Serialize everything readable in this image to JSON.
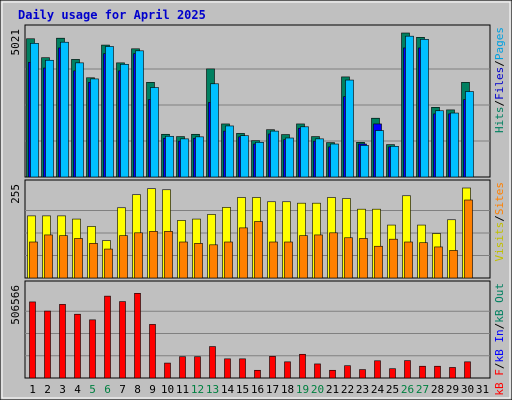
{
  "chart_data": {
    "type": "bar",
    "title": "Daily usage for April 2025",
    "days": [
      "1",
      "2",
      "3",
      "4",
      "5",
      "6",
      "7",
      "8",
      "9",
      "10",
      "11",
      "12",
      "13",
      "14",
      "15",
      "16",
      "17",
      "18",
      "19",
      "20",
      "21",
      "22",
      "23",
      "24",
      "25",
      "26",
      "27",
      "28",
      "29",
      "30",
      "31"
    ],
    "weekend_days": [
      5,
      6,
      12,
      13,
      19,
      20,
      26,
      27
    ],
    "colors": {
      "background": "#ffffff",
      "frame": "#c0c0c0",
      "title": "#0000cc",
      "day_weekday": "#000000",
      "day_weekend": "#008040",
      "grid": "#808080",
      "hits": "#008060",
      "files": "#0000ff",
      "pages": "#00c0ff",
      "visits": "#ffff00",
      "sites": "#ff8000",
      "kbf": "#ff0000",
      "kbin": "#0000ff",
      "kbout": "#008060"
    },
    "panels": [
      {
        "id": "hits",
        "max_label": "5021",
        "max": 5021,
        "legend": [
          {
            "text": "Hits",
            "color": "#008060"
          },
          {
            "text": "/",
            "color": "#000000"
          },
          {
            "text": "Files",
            "color": "#0000cc"
          },
          {
            "text": "/",
            "color": "#000000"
          },
          {
            "text": "Pages",
            "color": "#00a0e0"
          }
        ],
        "series": [
          {
            "name": "Hits",
            "color": "#008060",
            "values": [
              4820,
              4160,
              4840,
              4100,
              3460,
              4600,
              3980,
              4470,
              3300,
              1490,
              1410,
              1490,
              3770,
              1850,
              1520,
              1270,
              1650,
              1480,
              1850,
              1410,
              1200,
              3490,
              1210,
              2050,
              1130,
              5021,
              4870,
              2430,
              2340,
              3300,
              null
            ]
          },
          {
            "name": "Files",
            "color": "#0000ff",
            "values": [
              4000,
              3800,
              4500,
              3700,
              3300,
              4300,
              3700,
              4300,
              2700,
              1350,
              1250,
              1350,
              2600,
              1600,
              1400,
              1150,
              1500,
              1300,
              1700,
              1250,
              1050,
              2800,
              1150,
              1850,
              1050,
              4500,
              4500,
              2200,
              2200,
              2700,
              null
            ]
          },
          {
            "name": "Pages",
            "color": "#00c0ff",
            "values": [
              4660,
              4070,
              4700,
              3980,
              3420,
              4550,
              3930,
              4400,
              3120,
              1420,
              1330,
              1400,
              3250,
              1780,
              1440,
              1210,
              1600,
              1360,
              1750,
              1330,
              1150,
              3380,
              1100,
              1620,
              1070,
              4910,
              4800,
              2310,
              2230,
              2980,
              null
            ]
          }
        ]
      },
      {
        "id": "visits",
        "max_label": "255",
        "max": 255,
        "legend": [
          {
            "text": "Visits",
            "color": "#c0c000"
          },
          {
            "text": "/",
            "color": "#000000"
          },
          {
            "text": "Sites",
            "color": "#ff8000"
          }
        ],
        "series": [
          {
            "name": "Visits",
            "color": "#ffff00",
            "values": [
              176,
              176,
              176,
              167,
              146,
              106,
              199,
              236,
              253,
              250,
              163,
              167,
              180,
              200,
              228,
              228,
              216,
              216,
              212,
              212,
              228,
              225,
              195,
              195,
              150,
              233,
              150,
              126,
              165,
              255,
              null
            ]
          },
          {
            "name": "Sites",
            "color": "#ff8000",
            "values": [
              102,
              122,
              120,
              112,
              98,
              82,
              120,
              128,
              132,
              132,
              102,
              98,
              94,
              102,
              142,
              160,
              102,
              102,
              120,
              122,
              128,
              114,
              112,
              90,
              110,
              102,
              100,
              88,
              78,
              221,
              null
            ]
          }
        ]
      },
      {
        "id": "kbytes",
        "max_label": "506566",
        "max": 506566,
        "legend": [
          {
            "text": "kB F",
            "color": "#ff0000"
          },
          {
            "text": "/",
            "color": "#000000"
          },
          {
            "text": "kB In",
            "color": "#0000ff"
          },
          {
            "text": "/",
            "color": "#000000"
          },
          {
            "text": "kB Out",
            "color": "#008060"
          }
        ],
        "series": [
          {
            "name": "kB F",
            "color": "#ff0000",
            "values": [
              433000,
              381000,
              419000,
              363000,
              331000,
              466000,
              435000,
              482000,
              305000,
              85000,
              121000,
              121000,
              179000,
              109000,
              109000,
              44000,
              123000,
              92000,
              135000,
              80000,
              44000,
              70000,
              48000,
              98000,
              53000,
              99000,
              67000,
              67000,
              60000,
              92000,
              null
            ]
          }
        ]
      }
    ]
  }
}
